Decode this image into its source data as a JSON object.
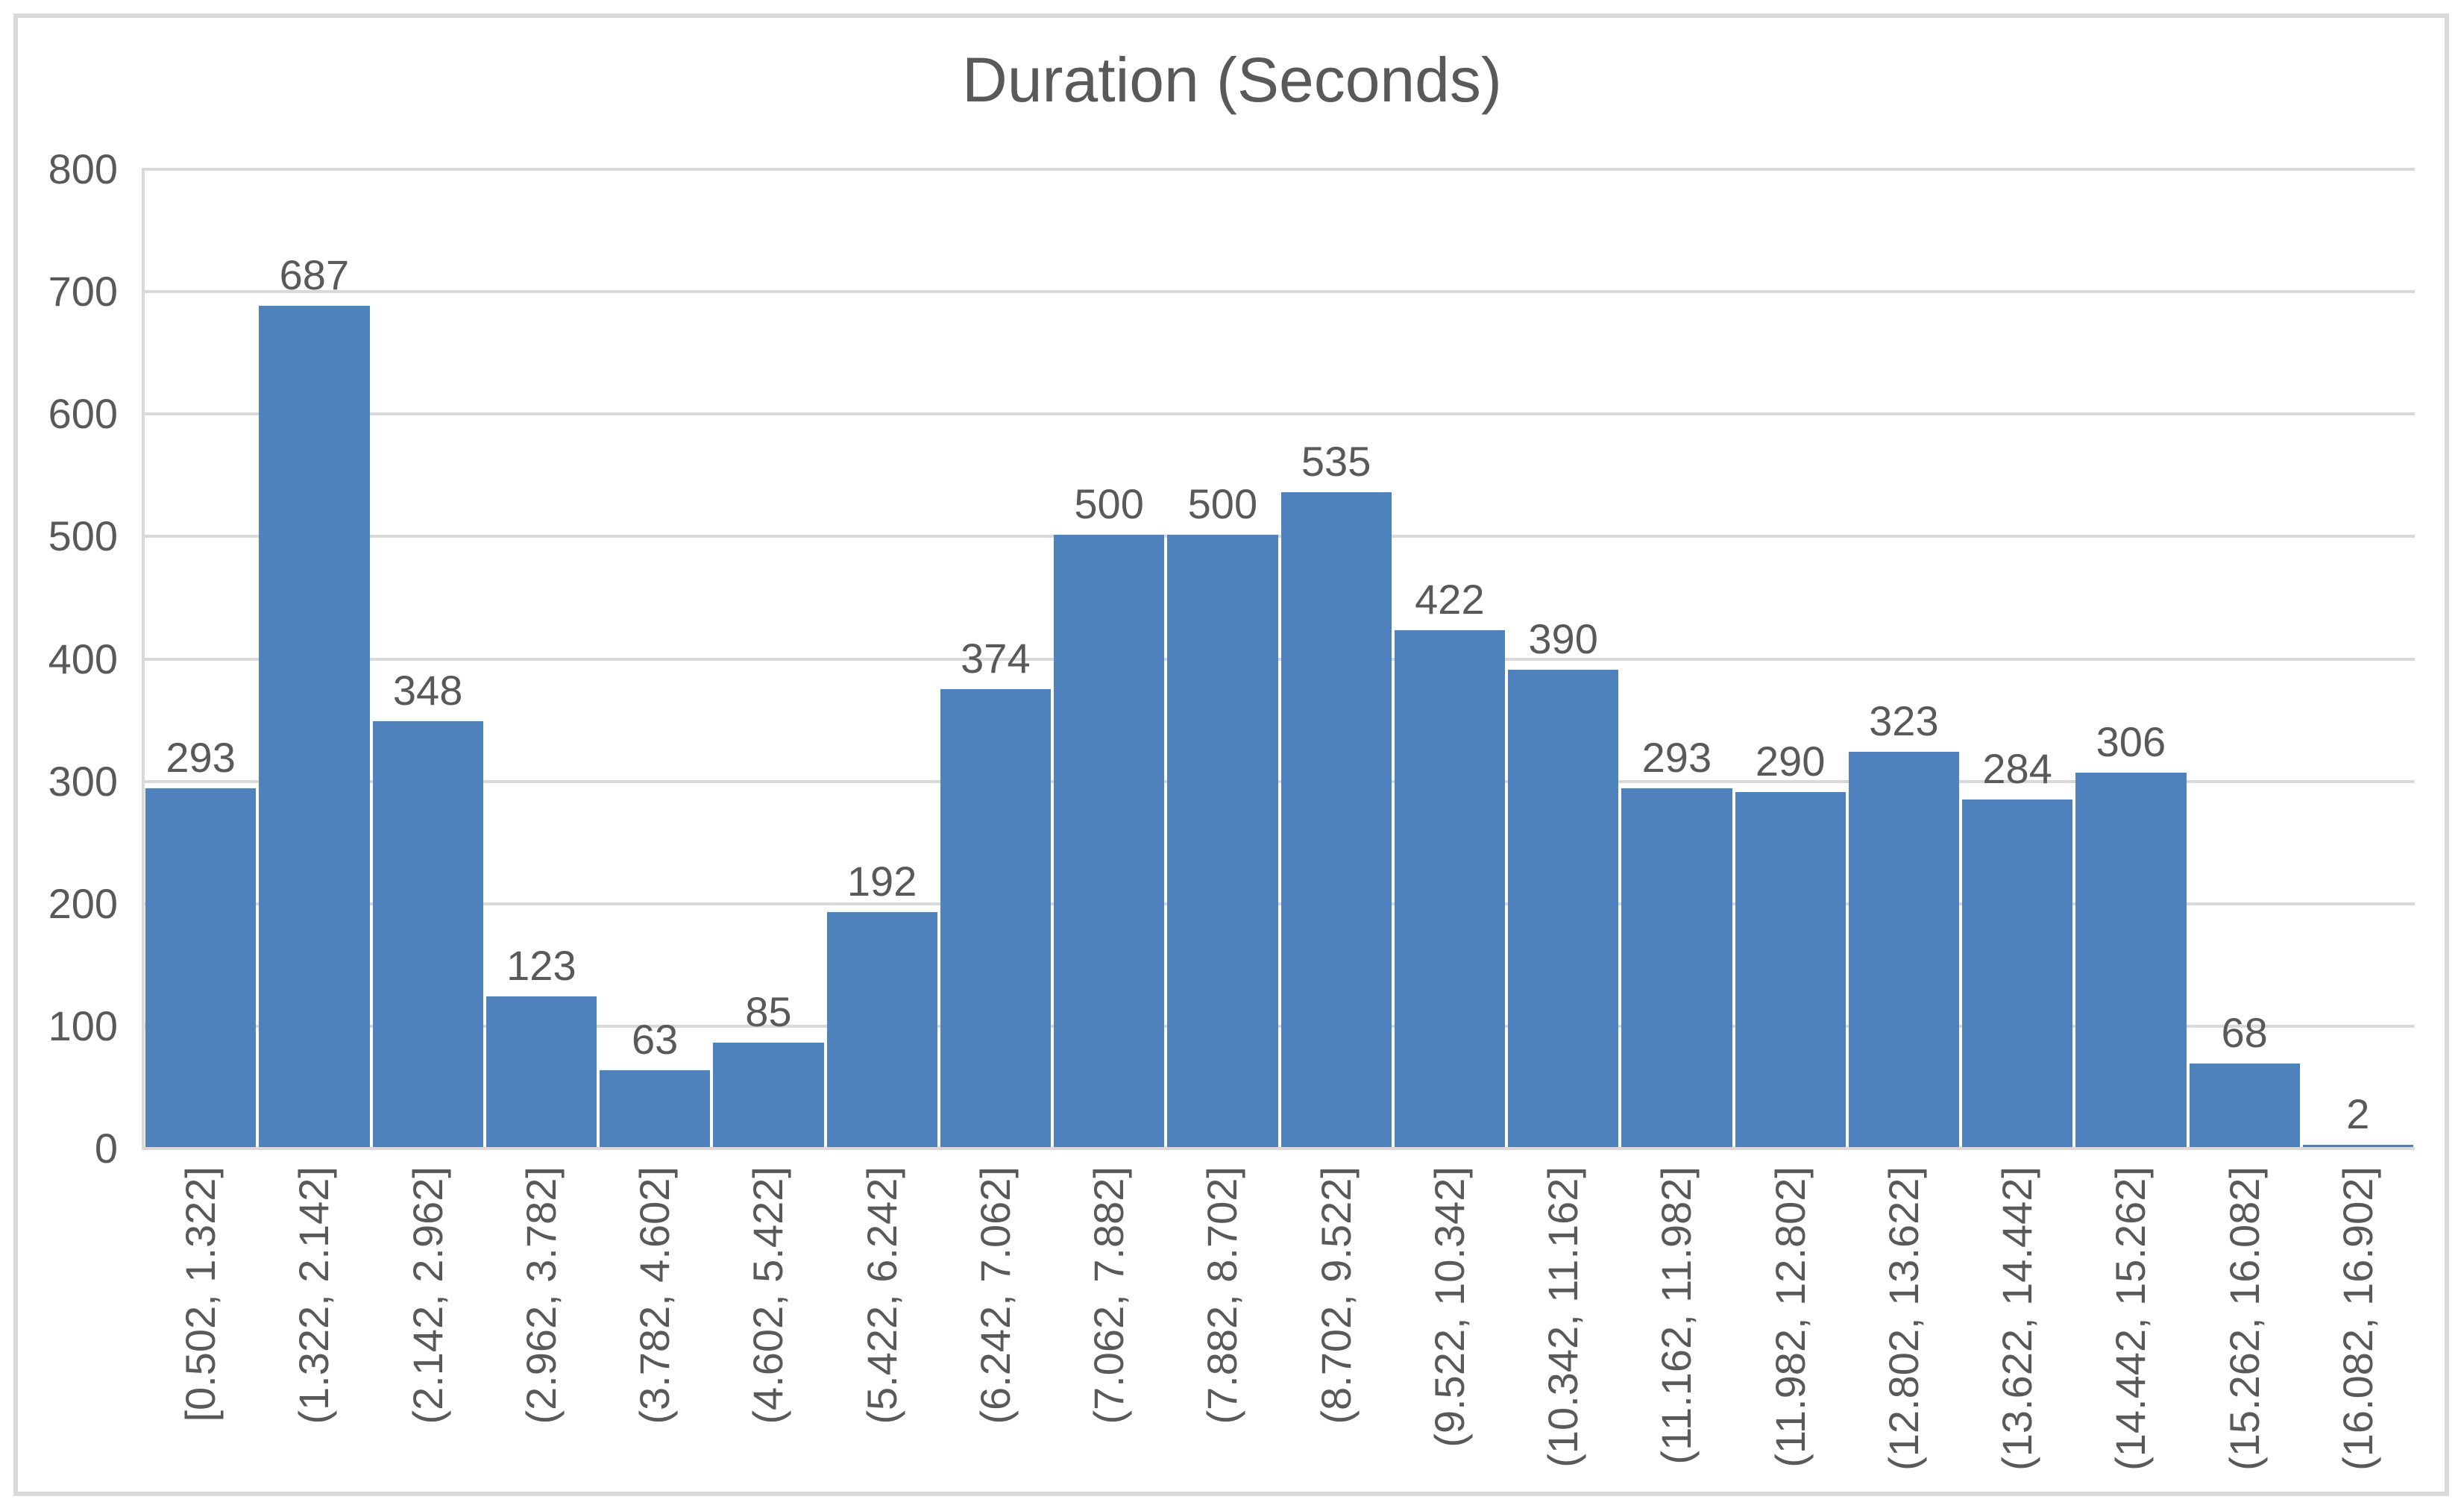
{
  "chart_data": {
    "type": "bar",
    "title": "Duration (Seconds)",
    "categories": [
      "[0.502, 1.322]",
      "(1.322, 2.142]",
      "(2.142, 2.962]",
      "(2.962, 3.782]",
      "(3.782, 4.602]",
      "(4.602, 5.422]",
      "(5.422, 6.242]",
      "(6.242, 7.062]",
      "(7.062, 7.882]",
      "(7.882, 8.702]",
      "(8.702, 9.522]",
      "(9.522, 10.342]",
      "(10.342, 11.162]",
      "(11.162, 11.982]",
      "(11.982, 12.802]",
      "(12.802, 13.622]",
      "(13.622, 14.442]",
      "(14.442, 15.262]",
      "(15.262, 16.082]",
      "(16.082, 16.902]"
    ],
    "values": [
      293,
      687,
      348,
      123,
      63,
      85,
      192,
      374,
      500,
      500,
      535,
      422,
      390,
      293,
      290,
      323,
      284,
      306,
      68,
      2
    ],
    "xlabel": "",
    "ylabel": "",
    "ylim": [
      0,
      800
    ],
    "y_ticks": [
      0,
      100,
      200,
      300,
      400,
      500,
      600,
      700,
      800
    ],
    "grid": true,
    "legend": false,
    "data_labels": true,
    "bar_color": "#4f81bd",
    "grid_color": "#d9d9d9",
    "text_color": "#595959",
    "frame_color": "#d9d9d9"
  }
}
